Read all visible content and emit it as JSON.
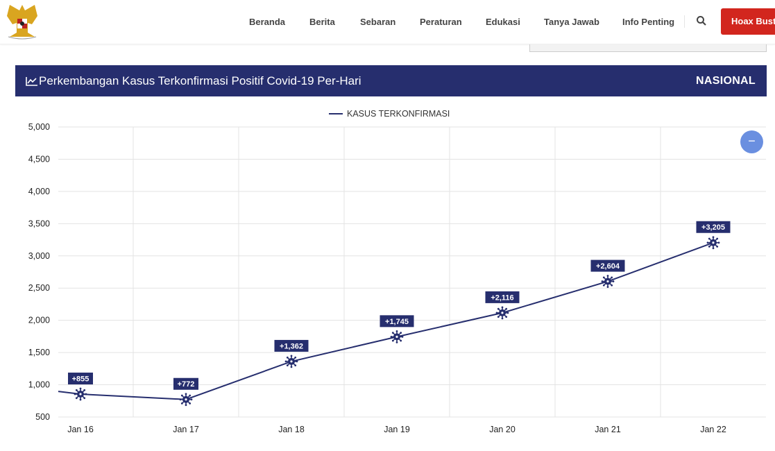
{
  "header": {
    "logo": "Garuda Pancasila",
    "nav": [
      "Beranda",
      "Berita",
      "Sebaran",
      "Peraturan",
      "Edukasi",
      "Tanya Jawab",
      "Info Penting"
    ],
    "search_icon": "search-icon",
    "hoax_button": "Hoax Buster"
  },
  "banner": {
    "title": "Perkembangan Kasus Terkonfirmasi Positif Covid-19 Per-Hari",
    "scope": "NASIONAL",
    "icon": "line-chart-icon"
  },
  "zoom_button": "−",
  "colors": {
    "banner": "#262e6e",
    "hoax": "#d2261e",
    "series": "#262e6e",
    "zoom": "#6a8fe0"
  },
  "chart_data": {
    "type": "line",
    "categories": [
      "Jan 16",
      "Jan 17",
      "Jan 18",
      "Jan 19",
      "Jan 20",
      "Jan 21",
      "Jan 22"
    ],
    "series": [
      {
        "name": "KASUS TERKONFIRMASI",
        "values": [
          855,
          772,
          1362,
          1745,
          2116,
          2604,
          3205
        ],
        "labels": [
          "+855",
          "+772",
          "+1,362",
          "+1,745",
          "+2,116",
          "+2,604",
          "+3,205"
        ]
      }
    ],
    "yticks": [
      "5,000",
      "4,500",
      "4,000",
      "3,500",
      "3,000",
      "2,500",
      "2,000",
      "1,500",
      "1,000",
      "500"
    ],
    "ylim": [
      500,
      5000
    ],
    "grid": true,
    "legend": "top",
    "marker": "virus-icon"
  }
}
